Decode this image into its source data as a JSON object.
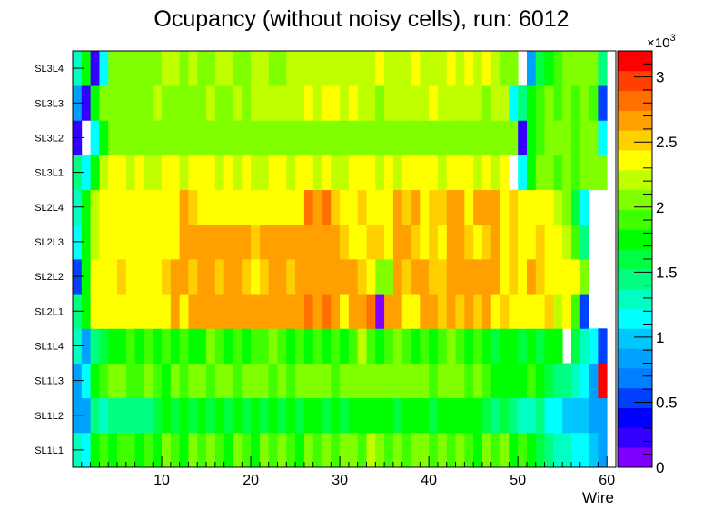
{
  "chart_data": {
    "type": "heatmap",
    "title": "Ocupancy (without noisy cells), run: 6012",
    "xlabel": "Wire",
    "ylabel": "",
    "xlim": [
      0,
      61
    ],
    "x_ticks": [
      10,
      20,
      30,
      40,
      50,
      60
    ],
    "y_categories": [
      "SL1L1",
      "SL1L2",
      "SL1L3",
      "SL1L4",
      "SL2L1",
      "SL2L2",
      "SL2L3",
      "SL2L4",
      "SL3L1",
      "SL3L2",
      "SL3L3",
      "SL3L4"
    ],
    "colorbar": {
      "min": 0,
      "max": 3.2,
      "exponent_label": "×10",
      "exponent_power": "3",
      "ticks": [
        0,
        0.5,
        1,
        1.5,
        2,
        2.5,
        3
      ],
      "tick_labels": [
        "0",
        "0.5",
        "1",
        "1.5",
        "2",
        "2.5",
        "3"
      ],
      "palette": [
        "#7f00ff",
        "#3300ff",
        "#0000ff",
        "#0040ff",
        "#007fff",
        "#00a0ff",
        "#00c8ff",
        "#00ffff",
        "#00ffc0",
        "#00ff80",
        "#00ff40",
        "#00ff00",
        "#40ff00",
        "#80ff00",
        "#c0ff00",
        "#ffff00",
        "#ffd000",
        "#ffa000",
        "#ff7000",
        "#ff4000",
        "#ff0000"
      ]
    },
    "rows": [
      {
        "label": "SL1L1",
        "values": [
          1.3,
          1.2,
          1.7,
          1.9,
          1.8,
          1.9,
          1.9,
          1.8,
          1.9,
          1.8,
          2.0,
          1.9,
          1.8,
          2.0,
          1.9,
          2.0,
          1.9,
          1.8,
          2.0,
          1.9,
          1.8,
          2.0,
          1.9,
          2.0,
          1.9,
          1.8,
          2.0,
          1.9,
          2.0,
          1.9,
          2.0,
          2.1,
          1.9,
          2.2,
          2.0,
          1.9,
          2.0,
          1.9,
          2.1,
          2.0,
          1.9,
          2.0,
          1.9,
          2.0,
          1.9,
          1.8,
          2.0,
          1.9,
          2.0,
          1.8,
          1.9,
          1.8,
          1.6,
          1.4,
          1.3,
          1.3,
          1.2,
          1.1,
          1.0,
          0.9
        ]
      },
      {
        "label": "SL1L2",
        "values": [
          0.8,
          0.9,
          1.4,
          1.3,
          1.5,
          1.5,
          1.4,
          1.5,
          1.5,
          1.6,
          1.7,
          1.6,
          1.7,
          1.6,
          1.7,
          1.6,
          1.7,
          1.6,
          1.7,
          1.6,
          1.7,
          1.6,
          1.7,
          1.6,
          1.7,
          1.6,
          1.8,
          1.7,
          1.6,
          1.7,
          1.6,
          1.7,
          1.8,
          1.7,
          1.8,
          1.7,
          1.6,
          1.7,
          1.8,
          1.7,
          1.6,
          1.7,
          1.8,
          1.7,
          1.8,
          1.7,
          1.6,
          1.5,
          1.6,
          1.4,
          1.3,
          1.3,
          1.4,
          1.2,
          1.1,
          1.0,
          1.0,
          1.0,
          0.9,
          0.8
        ]
      },
      {
        "label": "SL1L3",
        "values": [
          0.9,
          1.2,
          1.8,
          1.9,
          2.0,
          2.0,
          1.9,
          1.9,
          2.0,
          1.9,
          1.8,
          2.0,
          1.9,
          2.0,
          2.0,
          1.9,
          2.0,
          2.0,
          1.9,
          2.0,
          2.1,
          2.0,
          1.9,
          2.0,
          1.9,
          2.1,
          2.0,
          2.1,
          2.0,
          1.9,
          2.0,
          2.0,
          2.1,
          2.1,
          2.0,
          2.1,
          2.0,
          2.0,
          2.1,
          2.0,
          1.9,
          2.0,
          2.1,
          2.0,
          1.9,
          2.0,
          1.9,
          1.7,
          1.8,
          1.7,
          1.8,
          1.9,
          1.7,
          1.6,
          1.4,
          1.5,
          1.3,
          1.2,
          0.9,
          3.1
        ]
      },
      {
        "label": "SL1L4",
        "values": [
          1.3,
          0.9,
          1.5,
          1.6,
          1.8,
          1.8,
          1.9,
          1.8,
          1.9,
          1.8,
          1.9,
          1.8,
          1.9,
          1.8,
          1.8,
          2.1,
          1.9,
          1.8,
          1.9,
          1.8,
          1.9,
          1.9,
          2.0,
          1.9,
          1.8,
          1.9,
          1.8,
          1.9,
          1.8,
          1.9,
          1.8,
          1.9,
          2.2,
          1.9,
          1.8,
          1.9,
          2.0,
          1.9,
          1.8,
          1.9,
          1.8,
          1.9,
          2.0,
          1.9,
          1.8,
          1.9,
          1.8,
          1.6,
          1.7,
          1.8,
          1.6,
          1.7,
          1.6,
          1.7,
          1.8,
          null,
          1.6,
          1.3,
          1.1,
          0.6
        ]
      },
      {
        "label": "SL2L1",
        "values": [
          1.5,
          1.8,
          2.4,
          2.3,
          2.4,
          2.4,
          2.4,
          2.4,
          2.4,
          2.4,
          2.3,
          2.6,
          2.4,
          2.6,
          2.6,
          2.6,
          2.6,
          2.6,
          2.7,
          2.6,
          2.6,
          2.6,
          2.6,
          2.7,
          2.6,
          2.6,
          2.8,
          2.6,
          2.8,
          2.6,
          2.4,
          2.6,
          2.6,
          2.8,
          0.1,
          2.6,
          2.7,
          2.4,
          2.4,
          2.6,
          2.6,
          2.5,
          2.6,
          2.5,
          2.6,
          2.5,
          2.6,
          2.4,
          2.5,
          2.4,
          2.4,
          2.4,
          2.4,
          2.5,
          2.2,
          2.3,
          1.9,
          0.6,
          null,
          null
        ]
      },
      {
        "label": "SL2L2",
        "values": [
          0.6,
          1.8,
          2.3,
          2.4,
          2.4,
          2.5,
          2.4,
          2.4,
          2.4,
          2.4,
          2.5,
          2.6,
          2.6,
          2.5,
          2.6,
          2.6,
          2.5,
          2.6,
          2.6,
          2.5,
          2.4,
          2.5,
          2.7,
          2.6,
          2.5,
          2.6,
          2.7,
          2.6,
          2.7,
          2.6,
          2.6,
          2.6,
          2.5,
          2.4,
          2.0,
          2.1,
          2.6,
          2.5,
          2.6,
          2.6,
          2.5,
          2.5,
          2.6,
          2.6,
          2.6,
          2.6,
          2.7,
          2.6,
          2.4,
          2.5,
          2.4,
          2.6,
          2.5,
          2.4,
          2.4,
          2.4,
          2.3,
          2.0,
          null,
          null
        ]
      },
      {
        "label": "SL2L3",
        "values": [
          1.2,
          1.8,
          2.2,
          2.4,
          2.4,
          2.4,
          2.4,
          2.4,
          2.4,
          2.4,
          2.4,
          2.4,
          2.6,
          2.6,
          2.6,
          2.6,
          2.6,
          2.6,
          2.6,
          2.6,
          2.5,
          2.6,
          2.6,
          2.6,
          2.6,
          2.6,
          2.7,
          2.6,
          2.7,
          2.6,
          2.5,
          2.4,
          2.4,
          2.5,
          2.5,
          2.4,
          2.6,
          2.6,
          2.5,
          2.4,
          2.5,
          2.4,
          2.6,
          2.6,
          2.5,
          2.4,
          2.5,
          2.6,
          2.4,
          2.5,
          2.4,
          2.4,
          2.5,
          2.4,
          2.4,
          2.2,
          1.9,
          1.4,
          null,
          null
        ]
      },
      {
        "label": "SL2L4",
        "values": [
          1.3,
          1.8,
          2.2,
          2.4,
          2.4,
          2.4,
          2.4,
          2.4,
          2.4,
          2.3,
          2.4,
          2.4,
          2.6,
          2.5,
          2.4,
          2.4,
          2.4,
          2.4,
          2.4,
          2.4,
          2.4,
          2.4,
          2.4,
          2.4,
          2.4,
          2.4,
          2.8,
          2.7,
          2.8,
          2.5,
          2.4,
          2.4,
          2.5,
          2.4,
          2.4,
          2.4,
          2.6,
          2.5,
          2.6,
          2.4,
          2.5,
          2.5,
          2.6,
          2.6,
          2.4,
          2.6,
          2.6,
          2.6,
          2.4,
          2.5,
          2.4,
          2.4,
          2.4,
          2.4,
          2.2,
          2.0,
          1.6,
          1.2,
          null,
          null
        ]
      },
      {
        "label": "SL3L1",
        "values": [
          1.5,
          1.2,
          1.7,
          2.2,
          2.3,
          2.3,
          2.2,
          2.3,
          2.2,
          2.2,
          2.3,
          2.3,
          2.2,
          2.3,
          2.3,
          2.3,
          2.2,
          2.3,
          2.2,
          2.3,
          2.2,
          2.2,
          2.3,
          2.3,
          2.2,
          2.3,
          2.3,
          2.2,
          2.3,
          2.2,
          2.2,
          2.3,
          2.3,
          2.3,
          2.2,
          2.3,
          2.2,
          2.3,
          2.3,
          2.3,
          2.3,
          2.2,
          2.3,
          2.3,
          2.3,
          2.2,
          2.3,
          2.2,
          2.3,
          null,
          1.1,
          1.7,
          2.0,
          2.0,
          1.9,
          2.0,
          1.9,
          2.0,
          2.0,
          2.1
        ]
      },
      {
        "label": "SL3L2",
        "values": [
          0.3,
          null,
          1.1,
          1.8,
          2.1,
          2.0,
          2.1,
          2.0,
          2.0,
          2.1,
          2.1,
          2.0,
          2.0,
          2.1,
          2.1,
          2.0,
          2.1,
          2.1,
          2.0,
          2.1,
          2.1,
          2.0,
          2.1,
          2.1,
          2.0,
          2.1,
          2.1,
          2.1,
          2.0,
          2.1,
          2.1,
          2.1,
          2.1,
          2.0,
          2.1,
          2.0,
          2.1,
          2.1,
          2.1,
          2.0,
          2.1,
          2.1,
          2.1,
          2.0,
          2.0,
          2.1,
          2.1,
          2.1,
          2.0,
          2.1,
          0.3,
          1.8,
          1.9,
          2.0,
          2.0,
          2.0,
          1.9,
          2.0,
          2.0,
          1.2
        ]
      },
      {
        "label": "SL3L3",
        "values": [
          0.9,
          0.3,
          1.8,
          2.0,
          2.1,
          2.1,
          2.1,
          2.1,
          2.1,
          2.2,
          2.1,
          2.1,
          2.1,
          2.1,
          2.1,
          2.2,
          2.1,
          2.1,
          2.2,
          2.1,
          2.2,
          2.2,
          2.2,
          2.2,
          2.2,
          2.2,
          2.3,
          2.2,
          2.3,
          2.3,
          2.2,
          2.3,
          2.2,
          2.2,
          2.1,
          2.2,
          2.2,
          2.2,
          2.2,
          2.2,
          2.3,
          2.2,
          2.2,
          2.2,
          2.2,
          2.2,
          2.1,
          2.2,
          2.2,
          1.2,
          1.4,
          1.8,
          1.9,
          2.0,
          1.9,
          2.0,
          1.9,
          2.0,
          1.9,
          0.6
        ]
      },
      {
        "label": "SL3L4",
        "values": [
          1.3,
          1.7,
          0.3,
          1.2,
          2.1,
          2.0,
          2.0,
          2.0,
          2.0,
          2.1,
          2.2,
          2.2,
          2.1,
          2.2,
          2.1,
          2.1,
          2.2,
          2.2,
          2.1,
          2.1,
          2.2,
          2.2,
          2.1,
          2.1,
          2.2,
          2.2,
          2.2,
          2.2,
          2.2,
          2.2,
          2.2,
          2.2,
          2.2,
          2.2,
          2.3,
          2.2,
          2.2,
          2.2,
          2.3,
          2.2,
          2.2,
          2.2,
          2.3,
          2.2,
          2.3,
          2.2,
          2.3,
          2.2,
          2.1,
          2.1,
          null,
          0.8,
          1.6,
          1.8,
          1.9,
          2.0,
          2.0,
          2.0,
          2.1,
          1.4
        ]
      }
    ]
  }
}
